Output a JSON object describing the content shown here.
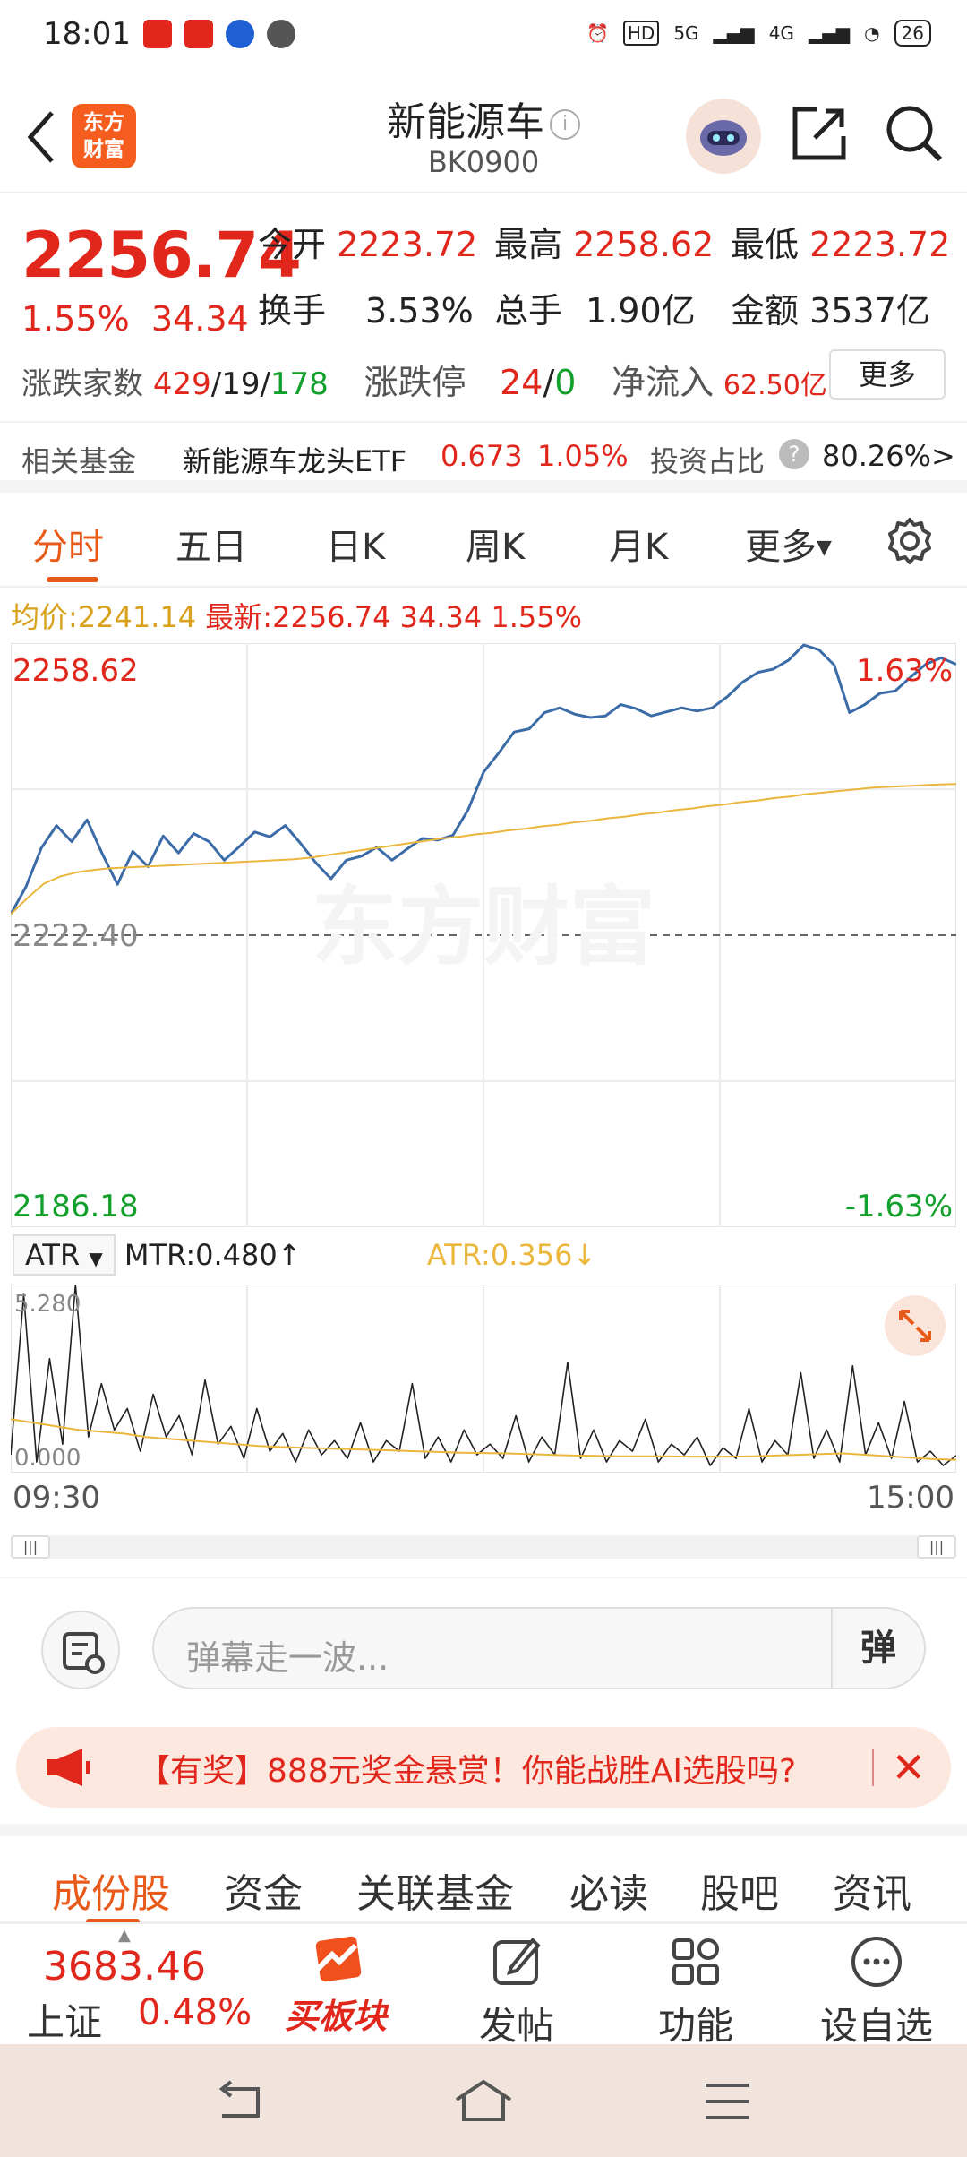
{
  "status_bar": {
    "time": "18:01",
    "network_5g": "5G",
    "network_4g": "4G",
    "hd": "HD",
    "battery": "26"
  },
  "header": {
    "logo_text_1": "东方",
    "logo_text_2": "财富",
    "title": "新能源车",
    "code": "BK0900"
  },
  "quote": {
    "price": "2256.74",
    "change_pct": "1.55%",
    "change_amt": "34.34",
    "open_label": "今开",
    "open": "2223.72",
    "high_label": "最高",
    "high": "2258.62",
    "low_label": "最低",
    "low": "2223.72",
    "turnover_label": "换手",
    "turnover": "3.53%",
    "volume_label": "总手",
    "volume": "1.90亿",
    "amount_label": "金额",
    "amount": "3537亿",
    "breadth_label": "涨跌家数",
    "up_count": "429",
    "flat_count": "19",
    "down_count": "178",
    "limit_label": "涨跌停",
    "limit_up": "24",
    "limit_down": "0",
    "netflow_label": "净流入",
    "netflow": "62.50亿",
    "more_button": "更多",
    "slash": "/"
  },
  "fund_row": {
    "label": "相关基金",
    "name": "新能源车龙头ETF",
    "price": "0.673",
    "pct": "1.05%",
    "ratio_label": "投资占比",
    "ratio": "80.26%",
    "arrow": ">",
    "help": "?"
  },
  "chart_tabs": [
    "分时",
    "五日",
    "日K",
    "周K",
    "月K",
    "更多"
  ],
  "avg_row": {
    "avg_label": "均价:",
    "avg_value": "2241.14",
    "latest_label": "最新:",
    "latest_value": "2256.74",
    "latest_change": "34.34",
    "latest_pct": "1.55%"
  },
  "chart_labels": {
    "top_price": "2258.62",
    "top_pct": "1.63%",
    "base_price": "2222.40",
    "bottom_price": "2186.18",
    "bottom_pct": "-1.63%",
    "watermark": "东方财富",
    "time_start": "09:30",
    "time_end": "15:00"
  },
  "chart_data": [
    {
      "type": "line",
      "xlabel": "",
      "ylabel": "",
      "x_range": [
        "09:30",
        "15:00"
      ],
      "ylim": [
        2186.18,
        2258.62
      ],
      "reference_line": 2222.4,
      "series": [
        {
          "name": "最新",
          "color": "#3b6ca8",
          "values": [
            2225.0,
            2228.4,
            2233.2,
            2236.0,
            2234.0,
            2236.7,
            2232.5,
            2228.7,
            2232.8,
            2230.9,
            2234.7,
            2232.6,
            2235.0,
            2234.0,
            2231.7,
            2233.4,
            2235.2,
            2234.6,
            2236.0,
            2233.8,
            2231.4,
            2229.4,
            2231.7,
            2232.2,
            2233.3,
            2231.7,
            2233.1,
            2234.4,
            2234.2,
            2234.8,
            2238.0,
            2242.6,
            2245.0,
            2247.6,
            2248.0,
            2250.0,
            2250.6,
            2249.8,
            2249.4,
            2249.6,
            2251.0,
            2250.5,
            2249.6,
            2250.1,
            2250.6,
            2250.2,
            2250.6,
            2252.0,
            2253.8,
            2255.0,
            2255.4,
            2256.5,
            2258.4,
            2257.8,
            2255.9,
            2250.0,
            2251.0,
            2252.4,
            2252.7,
            2254.4,
            2256.0,
            2256.8,
            2256.0
          ]
        },
        {
          "name": "均价",
          "color": "#eab73c",
          "values": [
            2225.0,
            2227.0,
            2228.8,
            2229.7,
            2230.2,
            2230.5,
            2230.7,
            2230.8,
            2230.9,
            2231.0,
            2231.1,
            2231.2,
            2231.3,
            2231.4,
            2231.5,
            2231.6,
            2231.7,
            2231.8,
            2232.0,
            2232.3,
            2232.6,
            2232.9,
            2233.2,
            2233.5,
            2233.8,
            2234.1,
            2234.4,
            2234.6,
            2234.9,
            2235.1,
            2235.4,
            2235.6,
            2235.9,
            2236.1,
            2236.4,
            2236.6,
            2236.9,
            2237.1,
            2237.4,
            2237.6,
            2237.9,
            2238.1,
            2238.4,
            2238.6,
            2238.9,
            2239.1,
            2239.4,
            2239.6,
            2239.9,
            2240.1,
            2240.3,
            2240.5,
            2240.7,
            2240.8,
            2240.9,
            2241.0,
            2241.1,
            2241.14
          ]
        }
      ]
    },
    {
      "type": "line",
      "ylim": [
        0,
        5.28
      ],
      "series": [
        {
          "name": "MTR",
          "color": "#222222",
          "values": [
            0.5,
            5.0,
            0.3,
            3.2,
            0.8,
            5.28,
            1.0,
            2.5,
            1.2,
            1.8,
            0.6,
            2.2,
            1.0,
            1.6,
            0.5,
            2.6,
            0.8,
            1.3,
            0.4,
            1.8,
            0.6,
            1.1,
            0.3,
            1.2,
            0.5,
            0.9,
            0.4,
            1.4,
            0.3,
            0.9,
            0.6,
            2.5,
            0.4,
            1.0,
            0.3,
            1.2,
            0.5,
            0.8,
            0.4,
            1.6,
            0.3,
            1.0,
            0.5,
            3.1,
            0.4,
            1.2,
            0.3,
            0.9,
            0.6,
            1.5,
            0.3,
            0.8,
            0.5,
            1.0,
            0.2,
            0.7,
            0.4,
            1.8,
            0.3,
            0.9,
            0.5,
            2.8,
            0.4,
            1.2,
            0.3,
            3.0,
            0.5,
            1.4,
            0.4,
            2.0,
            0.3,
            0.6,
            0.2,
            0.48
          ],
          "label": "MTR:0.480"
        },
        {
          "name": "ATR",
          "color": "#eab73c",
          "values": [
            1.5,
            1.4,
            1.3,
            1.2,
            1.15,
            1.1,
            1.0,
            0.95,
            0.9,
            0.85,
            0.8,
            0.75,
            0.72,
            0.7,
            0.68,
            0.66,
            0.64,
            0.62,
            0.6,
            0.58,
            0.56,
            0.55,
            0.54,
            0.52,
            0.5,
            0.48,
            0.47,
            0.46,
            0.46,
            0.46,
            0.45,
            0.45,
            0.45,
            0.46,
            0.48,
            0.5,
            0.52,
            0.54,
            0.5,
            0.46,
            0.42,
            0.38,
            0.356
          ],
          "label": "ATR:0.356"
        }
      ],
      "top_label": "5.280",
      "bottom_label": "0.000"
    }
  ],
  "indicator": {
    "selector": "ATR",
    "mtr": "MTR:0.480",
    "mtr_arrow": "↑",
    "atr": "ATR:0.356",
    "atr_arrow": "↓"
  },
  "comment": {
    "placeholder": "弹幕走一波...",
    "danmaku_button": "弹"
  },
  "banner": {
    "text": "【有奖】888元奖金悬赏！你能战胜AI选股吗?"
  },
  "sub_tabs": [
    "成份股",
    "资金",
    "关联基金",
    "必读",
    "股吧",
    "资讯"
  ],
  "bottom_bar": {
    "index_value": "3683.46",
    "index_name": "上证",
    "index_pct": "0.48%",
    "buy_block": "买板块",
    "post": "发帖",
    "functions": "功能",
    "add_watch": "设自选"
  },
  "colors": {
    "up": "#e1261c",
    "down": "#11a02b",
    "accent": "#e85a1a",
    "price_line": "#3b6ca8",
    "avg_line": "#eab73c"
  }
}
